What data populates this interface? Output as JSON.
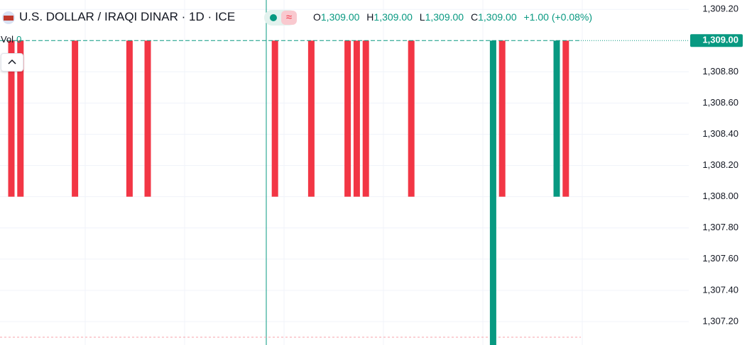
{
  "chart_data": {
    "type": "candlestick",
    "title": "U.S. DOLLAR / IRAQI DINAR · 1D · ICE",
    "legend": {
      "o_label": "O",
      "o": "1,309.00",
      "h_label": "H",
      "h": "1,309.00",
      "l_label": "L",
      "l": "1,309.00",
      "c_label": "C",
      "c": "1,309.00",
      "change": "+1.00 (+0.08%)"
    },
    "volume": {
      "label": "Vol",
      "value": "0"
    },
    "open": [
      1309,
      1309,
      null,
      null,
      null,
      null,
      null,
      1309,
      null,
      null,
      null,
      null,
      null,
      1309,
      null,
      1309,
      null,
      null,
      null,
      null,
      null,
      null,
      null,
      null,
      null,
      null,
      null,
      null,
      null,
      1309,
      null,
      null,
      null,
      1309,
      null,
      null,
      null,
      1309,
      1309,
      1309,
      null,
      null,
      null,
      null,
      1309,
      null,
      null,
      null,
      null,
      null,
      null,
      null,
      null,
      1307,
      1309,
      null,
      null,
      null,
      null,
      null,
      1308,
      1309,
      null
    ],
    "close": [
      1308,
      1308,
      null,
      null,
      null,
      null,
      null,
      1308,
      null,
      null,
      null,
      null,
      null,
      1308,
      null,
      1308,
      null,
      null,
      null,
      null,
      null,
      null,
      null,
      null,
      null,
      null,
      null,
      null,
      null,
      1308,
      null,
      null,
      null,
      1308,
      null,
      null,
      null,
      1308,
      1308,
      1308,
      null,
      null,
      null,
      null,
      1308,
      null,
      null,
      null,
      null,
      null,
      null,
      null,
      null,
      1309,
      1308,
      null,
      null,
      null,
      null,
      null,
      1309,
      1308,
      null
    ],
    "up_color": "#089981",
    "down_color": "#f23645",
    "ylim": [
      1307.05,
      1309.26
    ],
    "yticks": [
      {
        "value": 1309.2,
        "label": "1,309.20"
      },
      {
        "value": 1308.8,
        "label": "1,308.80"
      },
      {
        "value": 1308.6,
        "label": "1,308.60"
      },
      {
        "value": 1308.4,
        "label": "1,308.40"
      },
      {
        "value": 1308.2,
        "label": "1,308.20"
      },
      {
        "value": 1308.0,
        "label": "1,308.00"
      },
      {
        "value": 1307.8,
        "label": "1,307.80"
      },
      {
        "value": 1307.6,
        "label": "1,307.60"
      },
      {
        "value": 1307.4,
        "label": "1,307.40"
      },
      {
        "value": 1307.2,
        "label": "1,307.20"
      }
    ],
    "last_price": {
      "value": 1309,
      "label": "1,309.00"
    },
    "grid": true
  }
}
